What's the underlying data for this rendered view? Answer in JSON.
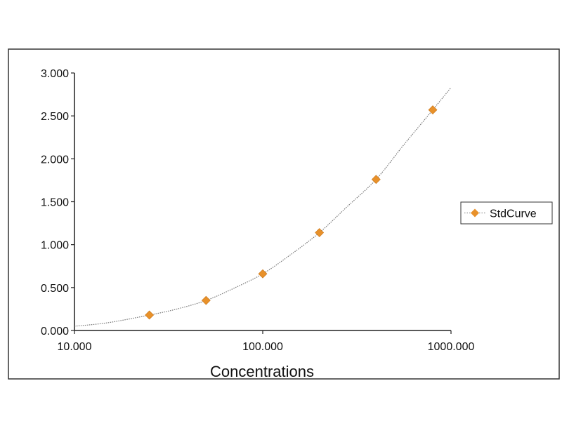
{
  "chart_data": {
    "type": "scatter",
    "title": "",
    "xlabel": "Concentrations",
    "ylabel": "",
    "x_scale": "log",
    "xlim": [
      10,
      1000
    ],
    "ylim": [
      0,
      3
    ],
    "x_ticks": [
      "10.000",
      "100.000",
      "1000.000"
    ],
    "y_ticks": [
      "0.000",
      "0.500",
      "1.000",
      "1.500",
      "2.000",
      "2.500",
      "3.000"
    ],
    "legend_position": "right",
    "series": [
      {
        "name": "StdCurve",
        "color": "#e8912a",
        "marker": "diamond",
        "points": [
          {
            "x": 25,
            "y": 0.18
          },
          {
            "x": 50,
            "y": 0.35
          },
          {
            "x": 100,
            "y": 0.66
          },
          {
            "x": 200,
            "y": 1.14
          },
          {
            "x": 400,
            "y": 1.76
          },
          {
            "x": 800,
            "y": 2.57
          }
        ]
      }
    ],
    "fit_curve": {
      "style": "dotted",
      "color": "#777777",
      "points": [
        {
          "x": 10,
          "y": 0.05
        },
        {
          "x": 15,
          "y": 0.09
        },
        {
          "x": 25,
          "y": 0.18
        },
        {
          "x": 35,
          "y": 0.25
        },
        {
          "x": 50,
          "y": 0.35
        },
        {
          "x": 70,
          "y": 0.49
        },
        {
          "x": 100,
          "y": 0.66
        },
        {
          "x": 140,
          "y": 0.88
        },
        {
          "x": 200,
          "y": 1.14
        },
        {
          "x": 280,
          "y": 1.44
        },
        {
          "x": 400,
          "y": 1.76
        },
        {
          "x": 560,
          "y": 2.16
        },
        {
          "x": 800,
          "y": 2.57
        },
        {
          "x": 1000,
          "y": 2.83
        }
      ]
    }
  }
}
